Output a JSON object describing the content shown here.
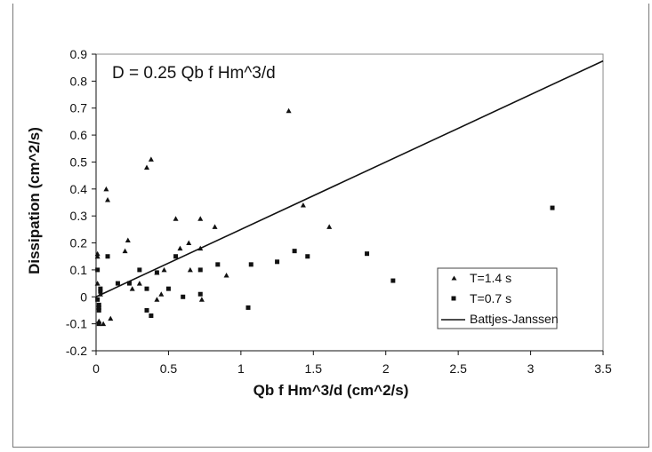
{
  "chart_data": {
    "type": "scatter",
    "title": "",
    "annotation": "D = 0.25 Qb f Hm^3/d",
    "xlabel": "Qb f Hm^3/d (cm^2/s)",
    "ylabel": "Dissipation (cm^2/s)",
    "xlim": [
      0,
      3.5
    ],
    "ylim": [
      -0.2,
      0.9
    ],
    "x_ticks": [
      "0",
      "0.5",
      "1",
      "1.5",
      "2",
      "2.5",
      "3",
      "3.5"
    ],
    "x_tick_values": [
      0,
      0.5,
      1,
      1.5,
      2,
      2.5,
      3,
      3.5
    ],
    "y_ticks": [
      "-0.2",
      "-0.1",
      "0",
      "0.1",
      "0.2",
      "0.3",
      "0.4",
      "0.5",
      "0.6",
      "0.7",
      "0.8",
      "0.9"
    ],
    "y_tick_values": [
      -0.2,
      -0.1,
      0,
      0.1,
      0.2,
      0.3,
      0.4,
      0.5,
      0.6,
      0.7,
      0.8,
      0.9
    ],
    "grid": false,
    "legend_position": "bottom-right",
    "series": [
      {
        "name": "T=1.4 s",
        "marker": "triangle",
        "color": "#111111",
        "x": [
          0.01,
          0.01,
          0.02,
          0.05,
          0.07,
          0.08,
          0.1,
          0.2,
          0.22,
          0.25,
          0.3,
          0.35,
          0.38,
          0.42,
          0.42,
          0.45,
          0.47,
          0.55,
          0.58,
          0.64,
          0.65,
          0.72,
          0.72,
          0.73,
          0.82,
          0.9,
          1.43,
          1.61,
          1.33,
          0.01,
          0.03
        ],
        "y": [
          0.16,
          0.15,
          -0.09,
          -0.1,
          0.4,
          0.36,
          -0.08,
          0.17,
          0.21,
          0.03,
          0.05,
          0.48,
          0.51,
          0.09,
          -0.01,
          0.01,
          0.1,
          0.29,
          0.18,
          0.2,
          0.1,
          0.29,
          0.18,
          -0.01,
          0.26,
          0.08,
          0.34,
          0.26,
          0.69,
          0.05,
          0.01
        ]
      },
      {
        "name": "T=0.7 s",
        "marker": "square",
        "color": "#111111",
        "x": [
          0.01,
          0.01,
          0.02,
          0.02,
          0.02,
          0.03,
          0.03,
          0.08,
          0.15,
          0.23,
          0.3,
          0.35,
          0.35,
          0.38,
          0.42,
          0.5,
          0.55,
          0.6,
          0.72,
          0.72,
          0.84,
          1.05,
          1.07,
          1.25,
          1.37,
          1.46,
          1.87,
          2.05,
          3.15,
          0.02
        ],
        "y": [
          0.1,
          -0.01,
          -0.03,
          -0.05,
          -0.1,
          0.02,
          0.03,
          0.15,
          0.05,
          0.05,
          0.1,
          0.03,
          -0.05,
          -0.07,
          0.09,
          0.03,
          0.15,
          0.0,
          0.1,
          0.01,
          0.12,
          -0.04,
          0.12,
          0.13,
          0.17,
          0.15,
          0.16,
          0.06,
          0.33,
          -0.04
        ]
      },
      {
        "name": "Battjes-Janssen",
        "type": "line",
        "color": "#111111",
        "x": [
          0,
          3.5
        ],
        "y": [
          0,
          0.875
        ]
      }
    ]
  }
}
